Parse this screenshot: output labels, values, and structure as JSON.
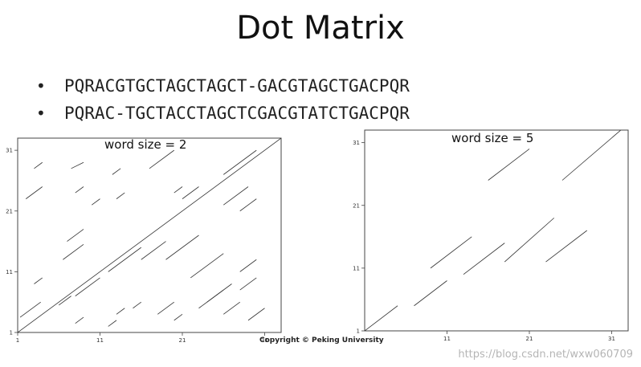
{
  "title": "Dot Matrix",
  "sequences": [
    "PQRACGTGCTAGCTAGCT-GACGTAGCTGACPQR",
    "PQRAC-TGCTACCTAGCTCGACGTATCTGACPQR"
  ],
  "copyright": "Copyright © Peking University",
  "watermark": "https://blog.csdn.net/wxw060709",
  "chart_data": [
    {
      "type": "scatter",
      "title": "word size = 2",
      "xticks": [
        "1",
        "11",
        "21",
        "31"
      ],
      "yticks": [
        "1",
        "11",
        "21",
        "31"
      ],
      "xlim": [
        1,
        33
      ],
      "ylim": [
        1,
        33
      ],
      "segments": [
        [
          1,
          1,
          33,
          33
        ],
        [
          1.3,
          3.5,
          3.8,
          6
        ],
        [
          3,
          9,
          4,
          10
        ],
        [
          6,
          5.5,
          7.5,
          7
        ],
        [
          6.5,
          13,
          9,
          15.5
        ],
        [
          7,
          16,
          9,
          18
        ],
        [
          8,
          24,
          9,
          25
        ],
        [
          7.5,
          28,
          9,
          29
        ],
        [
          3,
          28,
          4,
          29
        ],
        [
          2,
          23,
          4,
          25
        ],
        [
          8,
          2.5,
          9,
          3.5
        ],
        [
          8,
          7,
          11,
          10
        ],
        [
          12,
          2,
          13,
          3
        ],
        [
          10,
          22,
          11,
          23
        ],
        [
          12,
          11,
          16,
          15
        ],
        [
          13,
          4,
          14,
          5
        ],
        [
          12.5,
          27,
          13.5,
          28
        ],
        [
          13,
          23,
          14,
          24
        ],
        [
          15,
          5,
          16,
          6
        ],
        [
          16,
          13,
          19,
          16
        ],
        [
          17,
          28,
          20,
          31
        ],
        [
          18,
          4,
          20,
          6
        ],
        [
          20,
          3,
          21,
          4
        ],
        [
          20,
          24,
          21,
          25
        ],
        [
          19,
          13,
          23,
          17
        ],
        [
          22,
          10,
          26,
          14
        ],
        [
          21,
          23,
          23,
          25
        ],
        [
          23,
          5,
          25,
          7
        ],
        [
          25,
          7,
          27,
          9
        ],
        [
          26,
          22,
          29,
          25
        ],
        [
          24,
          6,
          26,
          8
        ],
        [
          26,
          4,
          28,
          6
        ],
        [
          26,
          27,
          30,
          31
        ],
        [
          28,
          8,
          30,
          10
        ],
        [
          28,
          11,
          30,
          13
        ],
        [
          28,
          21,
          30,
          23
        ],
        [
          29,
          3,
          31,
          5
        ]
      ]
    },
    {
      "type": "scatter",
      "title": "word size = 5",
      "xticks": [
        "11",
        "21",
        "31"
      ],
      "yticks": [
        "1",
        "11",
        "21",
        "31"
      ],
      "xlim": [
        1,
        33
      ],
      "ylim": [
        1,
        33
      ],
      "segments": [
        [
          1,
          1,
          5,
          5
        ],
        [
          7,
          5,
          11,
          9
        ],
        [
          9,
          11,
          14,
          16
        ],
        [
          13,
          10,
          18,
          15
        ],
        [
          18,
          12,
          24,
          19
        ],
        [
          16,
          25,
          21,
          30
        ],
        [
          23,
          12,
          28,
          17
        ],
        [
          25,
          25,
          33,
          34
        ]
      ]
    }
  ]
}
